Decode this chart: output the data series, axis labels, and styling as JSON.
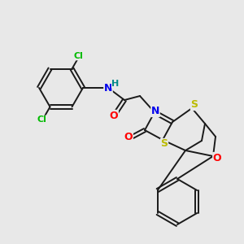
{
  "bg_color": "#e8e8e8",
  "bond_color": "#1a1a1a",
  "atom_colors": {
    "Cl": "#00bb00",
    "N": "#0000ee",
    "H": "#008888",
    "O": "#ff0000",
    "S": "#bbbb00"
  },
  "figsize": [
    3.0,
    3.0
  ],
  "dpi": 100,
  "lw": 1.4,
  "sep": 2.3,
  "fs": 8.5
}
